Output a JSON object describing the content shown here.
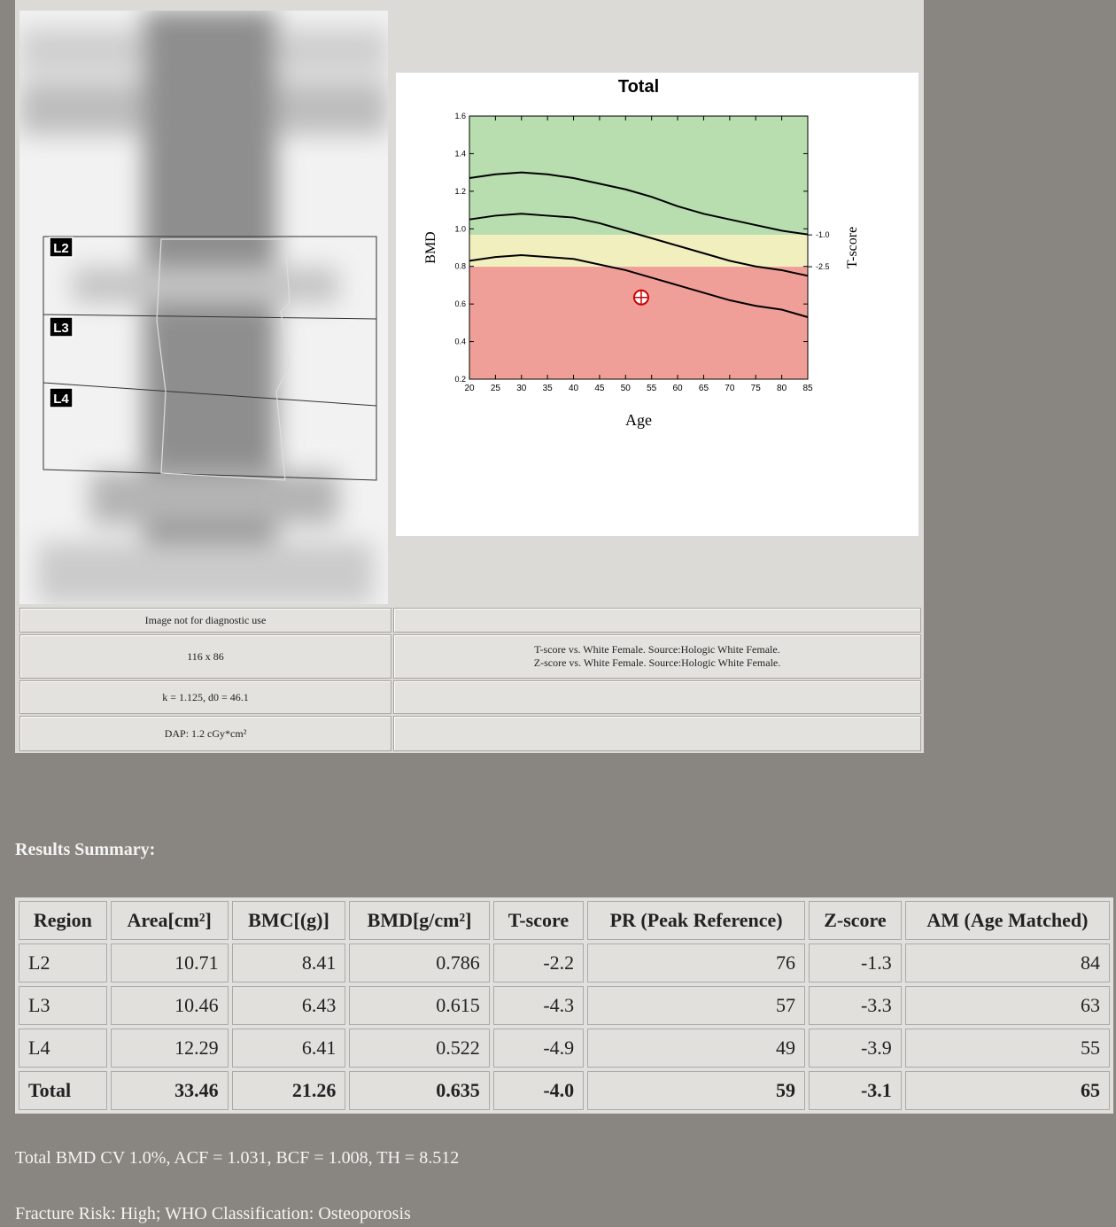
{
  "image_panel": {
    "regions": [
      "L2",
      "L3",
      "L4"
    ]
  },
  "info": {
    "left": [
      "Image not for diagnostic use",
      "116 x 86",
      "k = 1.125, d0 = 46.1",
      "DAP: 1.2 cGy*cm²"
    ],
    "right": [
      "T-score vs. White Female. Source:Hologic White Female.",
      "Z-score vs. White Female. Source:Hologic White Female."
    ]
  },
  "chart_data": {
    "type": "line",
    "title": "Total",
    "x_label": "Age",
    "y_label": "BMD",
    "y2_label": "T-score",
    "x": [
      20,
      25,
      30,
      35,
      40,
      45,
      50,
      55,
      60,
      65,
      70,
      75,
      80,
      85
    ],
    "series": [
      {
        "color": "#000000",
        "values": [
          1.27,
          1.29,
          1.3,
          1.29,
          1.27,
          1.24,
          1.21,
          1.17,
          1.12,
          1.08,
          1.05,
          1.02,
          0.99,
          0.97
        ]
      },
      {
        "color": "#000000",
        "values": [
          1.05,
          1.07,
          1.08,
          1.07,
          1.06,
          1.03,
          0.99,
          0.95,
          0.91,
          0.87,
          0.83,
          0.8,
          0.78,
          0.75
        ]
      },
      {
        "color": "#000000",
        "values": [
          0.83,
          0.85,
          0.86,
          0.85,
          0.84,
          0.81,
          0.78,
          0.74,
          0.7,
          0.66,
          0.62,
          0.59,
          0.57,
          0.53
        ]
      }
    ],
    "patient": {
      "x": 53,
      "y": 0.635,
      "color": "#cc0000"
    },
    "zone_colors": [
      "#b8ddae",
      "#f1efbe",
      "#f09f98"
    ],
    "xlim": [
      20,
      85
    ],
    "xticks": [
      20,
      25,
      30,
      35,
      40,
      45,
      50,
      55,
      60,
      65,
      70,
      75,
      80,
      85
    ],
    "ylim": [
      0.2,
      1.6
    ],
    "yticks": [
      0.2,
      0.4,
      0.6,
      0.8,
      {
        "value": 1,
        "label": "1.0"
      },
      1.2,
      1.4,
      1.6
    ],
    "y2lim": [
      -7.8,
      4.6
    ],
    "y2ticks": [
      {
        "value": -1,
        "label": "-1.0"
      },
      {
        "value": -2.5,
        "label": "-2.5"
      }
    ]
  },
  "results": {
    "title": "Results Summary:",
    "table": {
      "header": [
        "Region",
        "Area[cm²]",
        "BMC[(g)]",
        "BMD[g/cm²]",
        "T-score",
        "PR (Peak Reference)",
        "Z-score",
        "AM (Age Matched)"
      ],
      "rows": [
        [
          "L2",
          "10.71",
          "8.41",
          "0.786",
          "-2.2",
          "76",
          "-1.3",
          "84"
        ],
        [
          "L3",
          "10.46",
          "6.43",
          "0.615",
          "-4.3",
          "57",
          "-3.3",
          "63"
        ],
        [
          "L4",
          "12.29",
          "6.41",
          "0.522",
          "-4.9",
          "49",
          "-3.9",
          "55"
        ],
        [
          "Total",
          "33.46",
          "21.26",
          "0.635",
          "-4.0",
          "59",
          "-3.1",
          "65"
        ]
      ]
    }
  },
  "notes": [
    "Total BMD CV 1.0%, ACF = 1.031, BCF = 1.008, TH = 8.512",
    "Fracture Risk: High; WHO Classification: Osteoporosis"
  ]
}
